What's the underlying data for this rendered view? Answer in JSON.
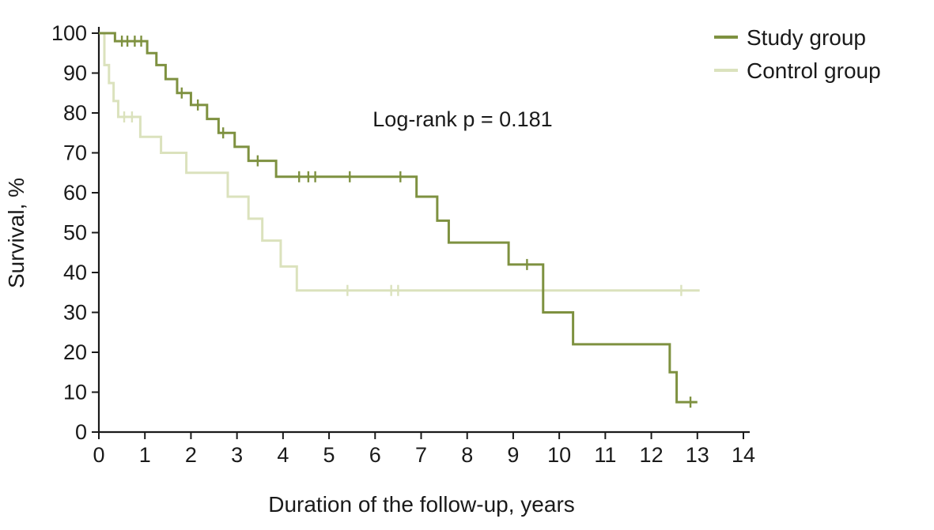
{
  "figure": {
    "background": "#ffffff",
    "text_color": "#1a1a1a"
  },
  "chart_data": {
    "type": "line",
    "subtype": "kaplan-meier-step",
    "title": "",
    "xlabel": "Duration of the follow-up, years",
    "ylabel": "Survival, %",
    "annotation": "Log-rank p = 0.181",
    "xlim": [
      0,
      14
    ],
    "ylim": [
      0,
      100
    ],
    "xticks": [
      0,
      1,
      2,
      3,
      4,
      5,
      6,
      7,
      8,
      9,
      10,
      11,
      12,
      13,
      14
    ],
    "yticks": [
      0,
      10,
      20,
      30,
      40,
      50,
      60,
      70,
      80,
      90,
      100
    ],
    "grid": false,
    "legend_position": "top-right",
    "series": [
      {
        "name": "Study group",
        "color": "#7e9140",
        "steps": [
          [
            0,
            100
          ],
          [
            0.35,
            98
          ],
          [
            1.05,
            95
          ],
          [
            1.25,
            92
          ],
          [
            1.45,
            88.5
          ],
          [
            1.7,
            85
          ],
          [
            2.0,
            82
          ],
          [
            2.35,
            78.5
          ],
          [
            2.6,
            75
          ],
          [
            2.95,
            71.5
          ],
          [
            3.25,
            68
          ],
          [
            3.85,
            64
          ],
          [
            6.9,
            59
          ],
          [
            7.35,
            53
          ],
          [
            7.6,
            47.5
          ],
          [
            8.9,
            42
          ],
          [
            9.65,
            30
          ],
          [
            10.3,
            22
          ],
          [
            12.4,
            15
          ],
          [
            12.55,
            7.5
          ],
          [
            13.0,
            7.5
          ]
        ],
        "censors": [
          [
            0.5,
            98
          ],
          [
            0.62,
            98
          ],
          [
            0.78,
            98
          ],
          [
            0.92,
            98
          ],
          [
            1.8,
            85
          ],
          [
            2.15,
            82
          ],
          [
            2.7,
            75
          ],
          [
            3.45,
            68
          ],
          [
            4.35,
            64
          ],
          [
            4.55,
            64
          ],
          [
            4.7,
            64
          ],
          [
            5.45,
            64
          ],
          [
            6.55,
            64
          ],
          [
            9.3,
            42
          ],
          [
            12.85,
            7.5
          ]
        ]
      },
      {
        "name": "Control group",
        "color": "#dbe2bd",
        "steps": [
          [
            0,
            100
          ],
          [
            0.12,
            92
          ],
          [
            0.22,
            87.5
          ],
          [
            0.32,
            83
          ],
          [
            0.42,
            79
          ],
          [
            0.9,
            74
          ],
          [
            1.35,
            70
          ],
          [
            1.9,
            65
          ],
          [
            2.8,
            59
          ],
          [
            3.25,
            53.5
          ],
          [
            3.55,
            48
          ],
          [
            3.95,
            41.5
          ],
          [
            4.3,
            35.5
          ],
          [
            13.05,
            35.5
          ]
        ],
        "censors": [
          [
            0.55,
            79
          ],
          [
            0.72,
            79
          ],
          [
            5.4,
            35.5
          ],
          [
            6.35,
            35.5
          ],
          [
            6.5,
            35.5
          ],
          [
            12.65,
            35.5
          ]
        ]
      }
    ]
  }
}
